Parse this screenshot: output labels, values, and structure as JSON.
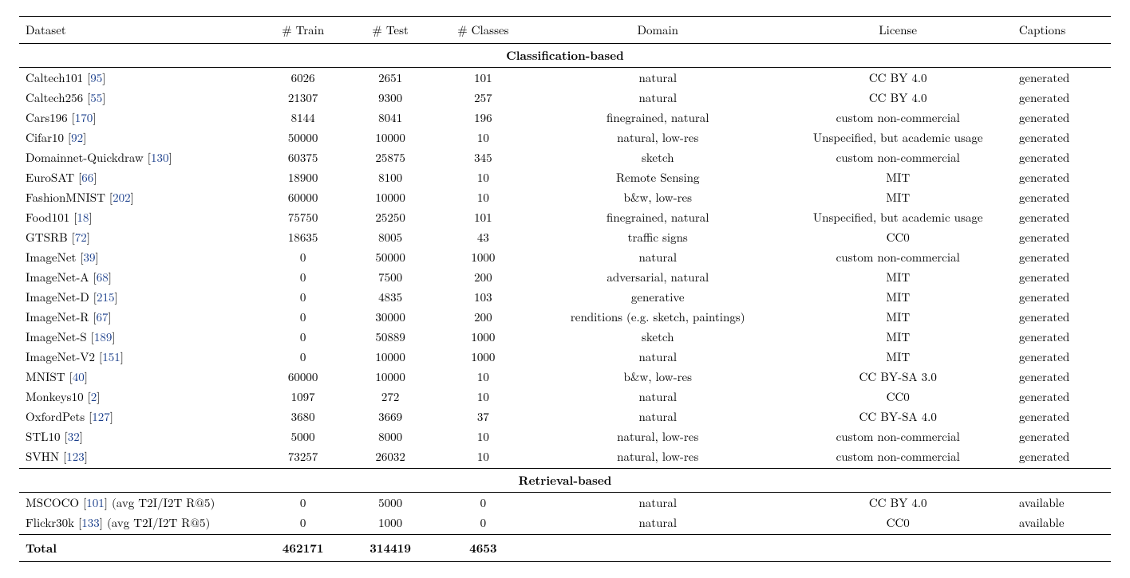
{
  "headers": {
    "dataset": "Dataset",
    "train": "# Train",
    "test": "# Test",
    "classes": "# Classes",
    "domain": "Domain",
    "license": "License",
    "captions": "Captions"
  },
  "sections": [
    {
      "title": "Classification-based",
      "rows": [
        {
          "name": "Caltech101",
          "ref": "95",
          "train": "6026",
          "test": "2651",
          "classes": "101",
          "domain": "natural",
          "license": "CC BY 4.0",
          "captions": "generated"
        },
        {
          "name": "Caltech256",
          "ref": "55",
          "train": "21307",
          "test": "9300",
          "classes": "257",
          "domain": "natural",
          "license": "CC BY 4.0",
          "captions": "generated"
        },
        {
          "name": "Cars196",
          "ref": "170",
          "train": "8144",
          "test": "8041",
          "classes": "196",
          "domain": "finegrained, natural",
          "license": "custom non-commercial",
          "captions": "generated"
        },
        {
          "name": "Cifar10",
          "ref": "92",
          "train": "50000",
          "test": "10000",
          "classes": "10",
          "domain": "natural, low-res",
          "license": "Unspecified, but academic usage",
          "captions": "generated"
        },
        {
          "name": "Domainnet-Quickdraw",
          "ref": "130",
          "train": "60375",
          "test": "25875",
          "classes": "345",
          "domain": "sketch",
          "license": "custom non-commercial",
          "captions": "generated"
        },
        {
          "name": "EuroSAT",
          "ref": "66",
          "train": "18900",
          "test": "8100",
          "classes": "10",
          "domain": "Remote Sensing",
          "license": "MIT",
          "captions": "generated"
        },
        {
          "name": "FashionMNIST",
          "ref": "202",
          "train": "60000",
          "test": "10000",
          "classes": "10",
          "domain": "b&w, low-res",
          "license": "MIT",
          "captions": "generated"
        },
        {
          "name": "Food101",
          "ref": "18",
          "train": "75750",
          "test": "25250",
          "classes": "101",
          "domain": "finegrained, natural",
          "license": "Unspecified, but academic usage",
          "captions": "generated"
        },
        {
          "name": "GTSRB",
          "ref": "72",
          "train": "18635",
          "test": "8005",
          "classes": "43",
          "domain": "traffic signs",
          "license": "CC0",
          "captions": "generated"
        },
        {
          "name": "ImageNet",
          "ref": "39",
          "train": "0",
          "test": "50000",
          "classes": "1000",
          "domain": "natural",
          "license": "custom non-commercial",
          "captions": "generated"
        },
        {
          "name": "ImageNet-A",
          "ref": "68",
          "train": "0",
          "test": "7500",
          "classes": "200",
          "domain": "adversarial, natural",
          "license": "MIT",
          "captions": "generated"
        },
        {
          "name": "ImageNet-D",
          "ref": "215",
          "train": "0",
          "test": "4835",
          "classes": "103",
          "domain": "generative",
          "license": "MIT",
          "captions": "generated"
        },
        {
          "name": "ImageNet-R",
          "ref": "67",
          "train": "0",
          "test": "30000",
          "classes": "200",
          "domain": "renditions (e.g. sketch, paintings)",
          "license": "MIT",
          "captions": "generated"
        },
        {
          "name": "ImageNet-S",
          "ref": "189",
          "train": "0",
          "test": "50889",
          "classes": "1000",
          "domain": "sketch",
          "license": "MIT",
          "captions": "generated"
        },
        {
          "name": "ImageNet-V2",
          "ref": "151",
          "train": "0",
          "test": "10000",
          "classes": "1000",
          "domain": "natural",
          "license": "MIT",
          "captions": "generated"
        },
        {
          "name": "MNIST",
          "ref": "40",
          "train": "60000",
          "test": "10000",
          "classes": "10",
          "domain": "b&w, low-res",
          "license": "CC BY-SA 3.0",
          "captions": "generated"
        },
        {
          "name": "Monkeys10",
          "ref": "2",
          "train": "1097",
          "test": "272",
          "classes": "10",
          "domain": "natural",
          "license": "CC0",
          "captions": "generated"
        },
        {
          "name": "OxfordPets",
          "ref": "127",
          "train": "3680",
          "test": "3669",
          "classes": "37",
          "domain": "natural",
          "license": "CC BY-SA 4.0",
          "captions": "generated"
        },
        {
          "name": "STL10",
          "ref": "32",
          "train": "5000",
          "test": "8000",
          "classes": "10",
          "domain": "natural, low-res",
          "license": "custom non-commercial",
          "captions": "generated"
        },
        {
          "name": "SVHN",
          "ref": "123",
          "train": "73257",
          "test": "26032",
          "classes": "10",
          "domain": "natural, low-res",
          "license": "custom non-commercial",
          "captions": "generated"
        }
      ]
    },
    {
      "title": "Retrieval-based",
      "rows": [
        {
          "name": "MSCOCO",
          "ref": "101",
          "suffix": " (avg T2I/I2T R@5)",
          "train": "0",
          "test": "5000",
          "classes": "0",
          "domain": "natural",
          "license": "CC BY 4.0",
          "captions": "available"
        },
        {
          "name": "Flickr30k",
          "ref": "133",
          "suffix": " (avg T2I/I2T R@5)",
          "train": "0",
          "test": "1000",
          "classes": "0",
          "domain": "natural",
          "license": "CC0",
          "captions": "available"
        }
      ]
    }
  ],
  "total": {
    "label": "Total",
    "train": "462171",
    "test": "314419",
    "classes": "4653"
  }
}
